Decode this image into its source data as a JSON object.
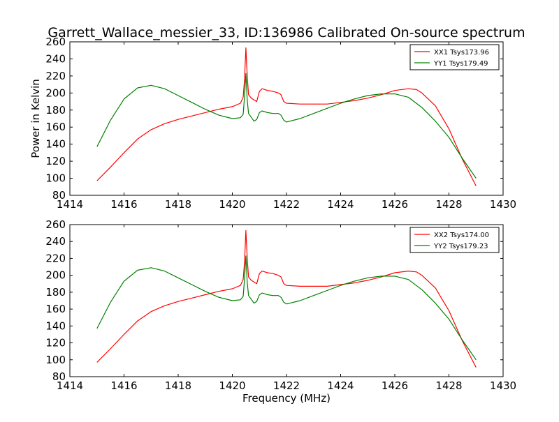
{
  "figure": {
    "title": "Garrett_Wallace_messier_33, ID:136986 Calibrated On-source spectrum",
    "colors": {
      "xx": "#ff0000",
      "yy": "#008000",
      "axes": "#000000",
      "background": "#ffffff"
    }
  },
  "chart_data": [
    {
      "type": "line",
      "title": "Garrett_Wallace_messier_33, ID:136986 Calibrated On-source spectrum",
      "xlabel": "",
      "ylabel": "Power in Kelvin",
      "xlim": [
        1414,
        1430
      ],
      "ylim": [
        80,
        260
      ],
      "xticks": [
        "1414",
        "1416",
        "1418",
        "1420",
        "1422",
        "1424",
        "1426",
        "1428",
        "1430"
      ],
      "yticks": [
        "80",
        "100",
        "120",
        "140",
        "160",
        "180",
        "200",
        "220",
        "240",
        "260"
      ],
      "grid": false,
      "legend": "top-right",
      "series": [
        {
          "name": "XX1 Tsys173.96",
          "color": "#ff0000",
          "x": [
            1415.0,
            1415.5,
            1416.0,
            1416.5,
            1417.0,
            1417.5,
            1418.0,
            1418.5,
            1419.0,
            1419.5,
            1420.0,
            1420.3,
            1420.4,
            1420.45,
            1420.5,
            1420.55,
            1420.6,
            1420.7,
            1420.9,
            1421.0,
            1421.1,
            1421.3,
            1421.5,
            1421.7,
            1421.8,
            1421.9,
            1422.0,
            1422.5,
            1423.0,
            1423.5,
            1424.0,
            1424.5,
            1425.0,
            1425.5,
            1426.0,
            1426.5,
            1426.8,
            1427.0,
            1427.5,
            1428.0,
            1428.5,
            1429.0
          ],
          "y": [
            97,
            113,
            130,
            146,
            157,
            164,
            169,
            173,
            177,
            181,
            184,
            188,
            195,
            215,
            253,
            220,
            198,
            194,
            190,
            202,
            205,
            203,
            202,
            200,
            198,
            190,
            188,
            187,
            187,
            187,
            189,
            191,
            194,
            198,
            203,
            205,
            204,
            200,
            185,
            158,
            122,
            91
          ]
        },
        {
          "name": "YY1 Tsys179.49",
          "color": "#008000",
          "x": [
            1415.0,
            1415.5,
            1416.0,
            1416.5,
            1417.0,
            1417.5,
            1418.0,
            1418.5,
            1419.0,
            1419.5,
            1420.0,
            1420.3,
            1420.4,
            1420.45,
            1420.5,
            1420.55,
            1420.6,
            1420.8,
            1420.9,
            1421.0,
            1421.1,
            1421.3,
            1421.5,
            1421.7,
            1421.8,
            1421.9,
            1422.0,
            1422.5,
            1423.0,
            1423.5,
            1424.0,
            1424.5,
            1425.0,
            1425.5,
            1426.0,
            1426.5,
            1427.0,
            1427.5,
            1428.0,
            1428.5,
            1429.0
          ],
          "y": [
            137,
            168,
            193,
            206,
            209,
            205,
            197,
            189,
            181,
            174,
            170,
            171,
            175,
            195,
            223,
            192,
            176,
            167,
            169,
            177,
            179,
            177,
            176,
            176,
            174,
            168,
            166,
            170,
            176,
            182,
            188,
            193,
            197,
            199,
            199,
            195,
            183,
            167,
            148,
            123,
            100
          ]
        }
      ]
    },
    {
      "type": "line",
      "title": "",
      "xlabel": "Frequency (MHz)",
      "ylabel": "",
      "xlim": [
        1414,
        1430
      ],
      "ylim": [
        80,
        260
      ],
      "xticks": [
        "1414",
        "1416",
        "1418",
        "1420",
        "1422",
        "1424",
        "1426",
        "1428",
        "1430"
      ],
      "yticks": [
        "80",
        "100",
        "120",
        "140",
        "160",
        "180",
        "200",
        "220",
        "240",
        "260"
      ],
      "grid": false,
      "legend": "top-right",
      "series": [
        {
          "name": "XX2 Tsys174.00",
          "color": "#ff0000",
          "x": [
            1415.0,
            1415.5,
            1416.0,
            1416.5,
            1417.0,
            1417.5,
            1418.0,
            1418.5,
            1419.0,
            1419.5,
            1420.0,
            1420.3,
            1420.4,
            1420.45,
            1420.5,
            1420.55,
            1420.6,
            1420.7,
            1420.9,
            1421.0,
            1421.1,
            1421.3,
            1421.5,
            1421.7,
            1421.8,
            1421.9,
            1422.0,
            1422.5,
            1423.0,
            1423.5,
            1424.0,
            1424.5,
            1425.0,
            1425.5,
            1426.0,
            1426.5,
            1426.8,
            1427.0,
            1427.5,
            1428.0,
            1428.5,
            1429.0
          ],
          "y": [
            97,
            113,
            130,
            146,
            157,
            164,
            169,
            173,
            177,
            181,
            184,
            188,
            195,
            215,
            253,
            220,
            198,
            194,
            190,
            202,
            205,
            203,
            202,
            200,
            198,
            190,
            188,
            187,
            187,
            187,
            189,
            191,
            194,
            198,
            203,
            205,
            204,
            200,
            185,
            158,
            122,
            91
          ]
        },
        {
          "name": "YY2 Tsys179.23",
          "color": "#008000",
          "x": [
            1415.0,
            1415.5,
            1416.0,
            1416.5,
            1417.0,
            1417.5,
            1418.0,
            1418.5,
            1419.0,
            1419.5,
            1420.0,
            1420.3,
            1420.4,
            1420.45,
            1420.5,
            1420.55,
            1420.6,
            1420.8,
            1420.9,
            1421.0,
            1421.1,
            1421.3,
            1421.5,
            1421.7,
            1421.8,
            1421.9,
            1422.0,
            1422.5,
            1423.0,
            1423.5,
            1424.0,
            1424.5,
            1425.0,
            1425.5,
            1426.0,
            1426.5,
            1427.0,
            1427.5,
            1428.0,
            1428.5,
            1429.0
          ],
          "y": [
            137,
            168,
            193,
            206,
            209,
            205,
            197,
            189,
            181,
            174,
            170,
            171,
            175,
            195,
            223,
            192,
            176,
            167,
            169,
            177,
            179,
            177,
            176,
            176,
            174,
            168,
            166,
            170,
            176,
            182,
            188,
            193,
            197,
            199,
            199,
            195,
            183,
            167,
            148,
            123,
            100
          ]
        }
      ]
    }
  ]
}
